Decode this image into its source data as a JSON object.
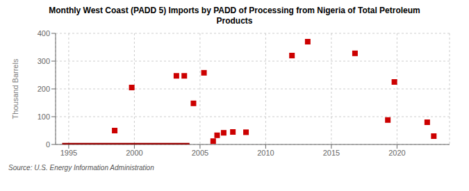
{
  "chart_data": {
    "type": "scatter",
    "title": "Monthly West Coast (PADD 5) Imports by PADD of Processing from Nigeria of Total Petroleum\nProducts",
    "ylabel": "Thousand Barrels",
    "annotations": [
      "Source: U.S. Energy Information Administration"
    ],
    "xlim": [
      1994.0,
      2024.0
    ],
    "xticks": [
      1995,
      2000,
      2005,
      2010,
      2015,
      2020
    ],
    "ylim": [
      0,
      400
    ],
    "yticks": [
      0,
      100,
      200,
      300,
      400
    ],
    "grid": true,
    "series": [
      {
        "type": "line",
        "color": "#990000",
        "x": [
          1994.5,
          2004.2
        ],
        "values": [
          0,
          0
        ]
      },
      {
        "type": "scatter",
        "color": "#cc0000",
        "marker": "square",
        "x": [
          1998.5,
          1999.8,
          2003.2,
          2003.8,
          2004.5,
          2005.3,
          2006.0,
          2006.3,
          2006.8,
          2007.5,
          2008.5,
          2012.0,
          2013.2,
          2016.8,
          2019.3,
          2019.8,
          2022.3,
          2022.8
        ],
        "values": [
          50,
          205,
          247,
          247,
          148,
          258,
          12,
          33,
          42,
          45,
          44,
          320,
          370,
          328,
          88,
          225,
          80,
          30
        ]
      }
    ]
  }
}
